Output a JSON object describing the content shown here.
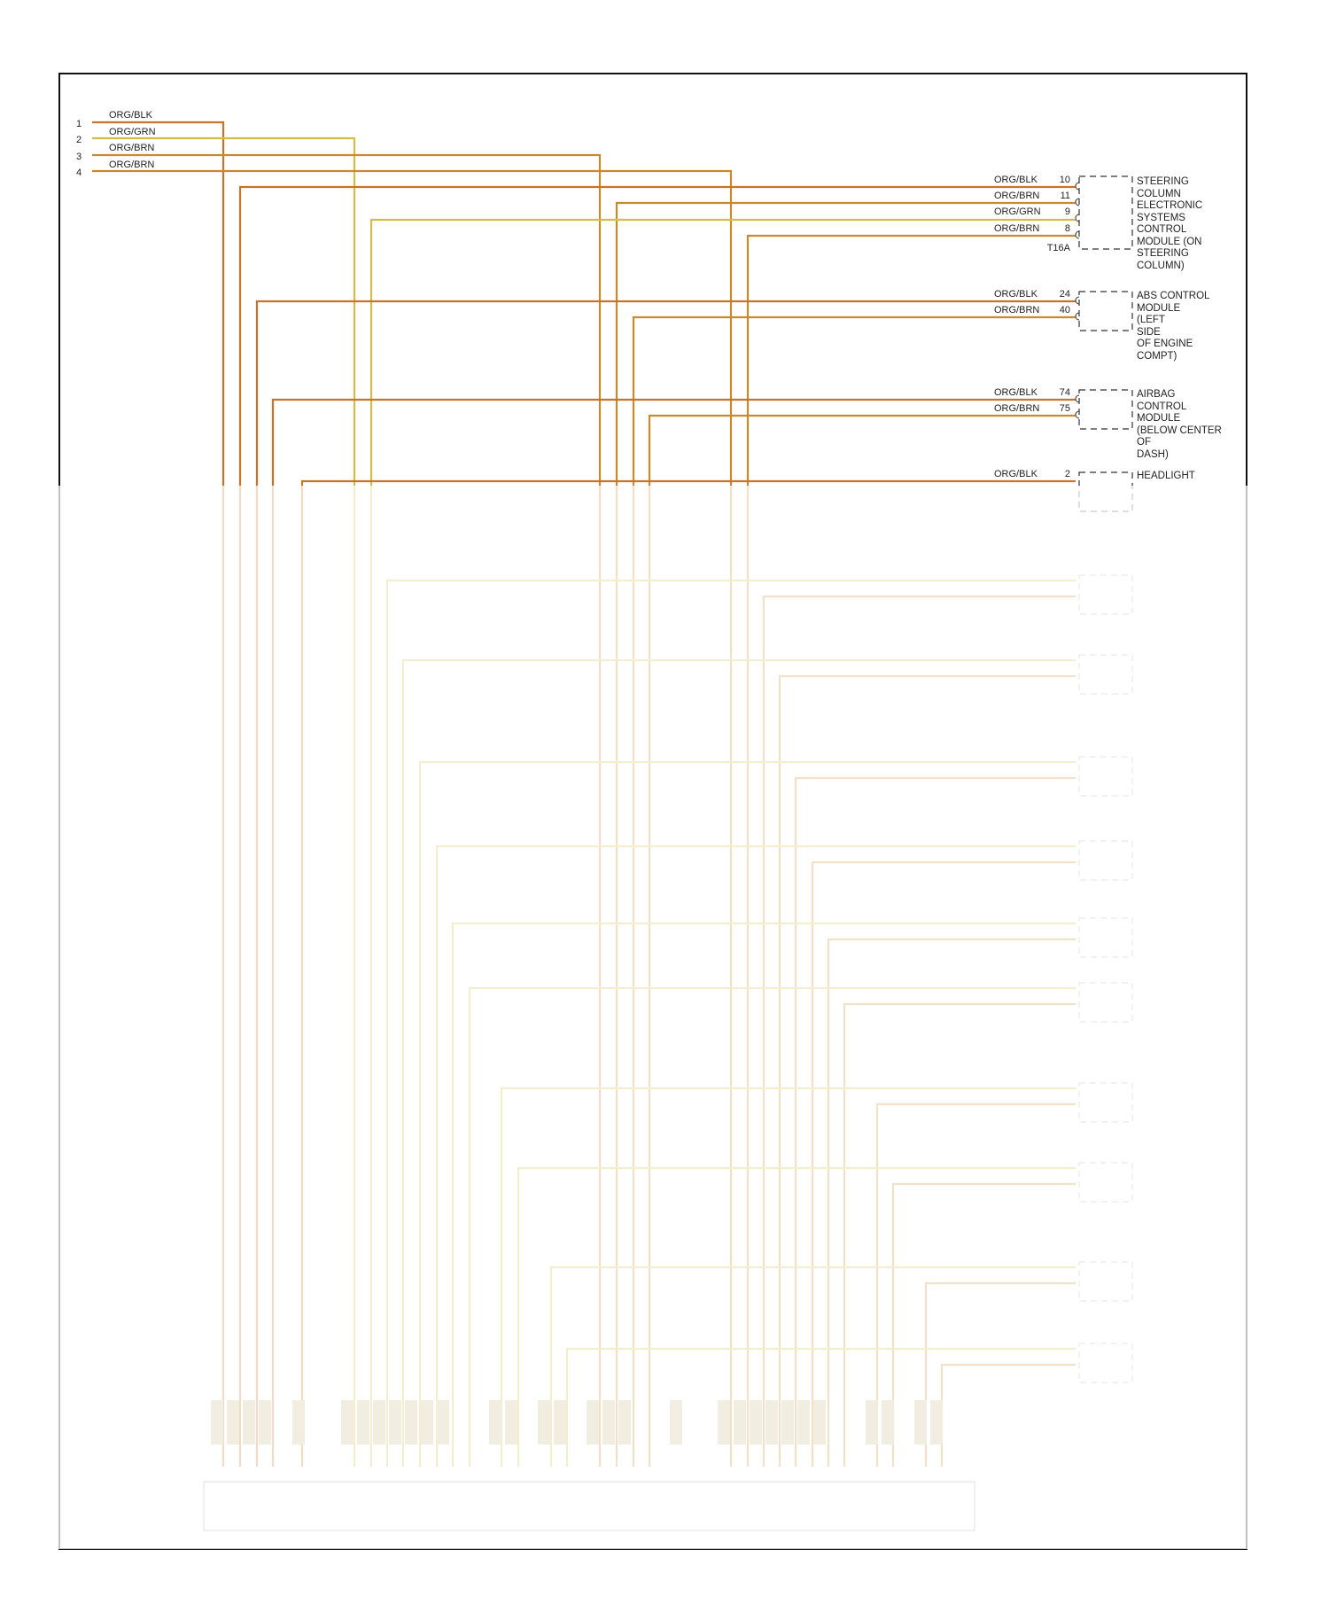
{
  "left_pins": [
    {
      "num": "1",
      "color": "ORG/BLK"
    },
    {
      "num": "2",
      "color": "ORG/GRN"
    },
    {
      "num": "3",
      "color": "ORG/BRN"
    },
    {
      "num": "4",
      "color": "ORG/BRN"
    }
  ],
  "components": [
    {
      "id": "steering",
      "pins": [
        {
          "color": "ORG/BLK",
          "num": "10"
        },
        {
          "color": "ORG/BRN",
          "num": "11"
        },
        {
          "color": "ORG/GRN",
          "num": "9"
        },
        {
          "color": "ORG/BRN",
          "num": "8"
        }
      ],
      "connector": "T16A",
      "lines": [
        "STEERING",
        "COLUMN",
        "ELECTRONIC",
        "SYSTEMS",
        "CONTROL",
        "MODULE (ON",
        "STEERING",
        "COLUMN)"
      ]
    },
    {
      "id": "abs",
      "pins": [
        {
          "color": "ORG/BLK",
          "num": "24"
        },
        {
          "color": "ORG/BRN",
          "num": "40"
        }
      ],
      "lines": [
        "ABS CONTROL",
        "MODULE",
        "(LEFT",
        "SIDE",
        "OF ENGINE",
        "COMPT)"
      ]
    },
    {
      "id": "airbag",
      "pins": [
        {
          "color": "ORG/BLK",
          "num": "74"
        },
        {
          "color": "ORG/BRN",
          "num": "75"
        }
      ],
      "lines": [
        "AIRBAG",
        "CONTROL",
        "MODULE",
        "(BELOW CENTER",
        "OF",
        "DASH)"
      ]
    },
    {
      "id": "headlight",
      "pins": [
        {
          "color": "ORG/BLK",
          "num": "2"
        }
      ],
      "lines": [
        "HEADLIGHT"
      ]
    }
  ],
  "colors": {
    "org_blk": "#c8732a",
    "org_brn": "#c98a2e",
    "org_grn": "#d4bd46",
    "frame": "#111111",
    "box_dash": "#333333"
  }
}
